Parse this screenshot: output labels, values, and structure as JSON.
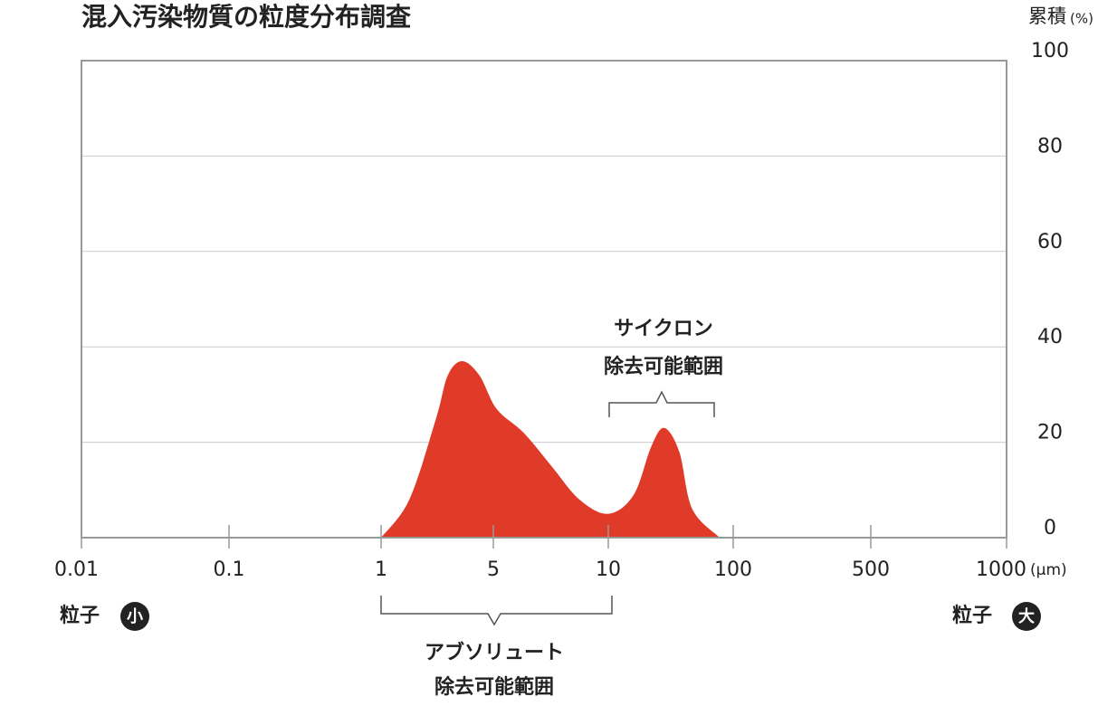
{
  "chart_data": {
    "type": "area",
    "title": "混入汚染物質の粒度分布調査",
    "y_label": "累積",
    "y_unit": "(%)",
    "x_unit": "(μm)",
    "x_scale": "log",
    "x": [
      1,
      1.5,
      2.2,
      2.6,
      3.2,
      4.1,
      5.1,
      6,
      7.1,
      8.4,
      10,
      16,
      22,
      28,
      37,
      47,
      78
    ],
    "values": [
      0,
      8,
      25,
      34,
      37,
      34,
      27,
      22,
      15,
      8,
      5,
      9,
      19,
      23,
      18,
      6,
      0
    ],
    "color": "#e03a28",
    "xlim": [
      0.01,
      1000
    ],
    "xticks": [
      0.01,
      0.1,
      1,
      5,
      10,
      100,
      500,
      1000
    ],
    "ylim": [
      0,
      100
    ],
    "yticks": [
      0,
      20,
      40,
      60,
      80,
      100
    ],
    "grid": true,
    "annotations": {
      "cyclone": [
        "サイクロン",
        "除去可能範囲"
      ],
      "absolute": [
        "アブソリュート",
        "除去可能範囲"
      ],
      "small": {
        "text": "粒子",
        "badge": "小"
      },
      "large": {
        "text": "粒子",
        "badge": "大"
      }
    }
  }
}
